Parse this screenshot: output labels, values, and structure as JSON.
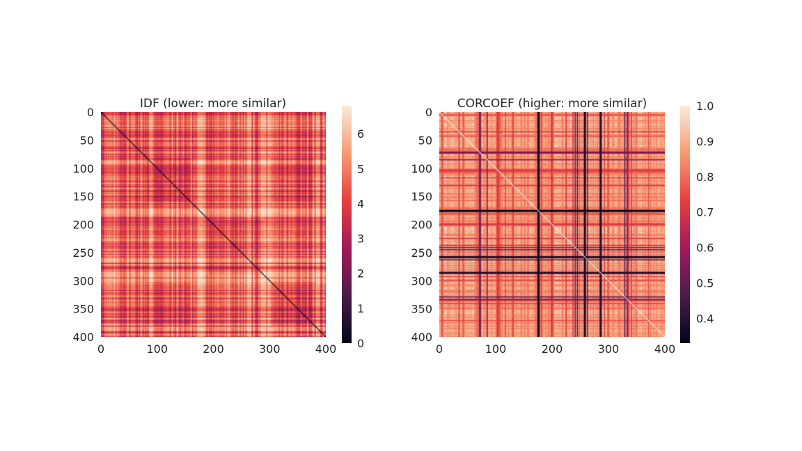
{
  "chart_data": [
    {
      "type": "heatmap",
      "title": "IDF (lower: more similar)",
      "matrix_size": 400,
      "xticks": [
        0,
        100,
        200,
        300,
        400
      ],
      "yticks": [
        0,
        50,
        100,
        150,
        200,
        250,
        300,
        350,
        400
      ],
      "diagonal_value": 0,
      "value_range": [
        0,
        6.8
      ],
      "colorbar": {
        "ticks": [
          0,
          1,
          2,
          3,
          4,
          5,
          6
        ],
        "vmin": 0,
        "vmax": 6.8
      },
      "colormap": "rocket",
      "cmap_stops": [
        "#03051a",
        "#4c1d4b",
        "#a11a5b",
        "#e83f3f",
        "#f69c73",
        "#faebdd"
      ],
      "grid": false
    },
    {
      "type": "heatmap",
      "title": "CORCOEF (higher: more similar)",
      "matrix_size": 400,
      "xticks": [
        0,
        100,
        200,
        300,
        400
      ],
      "yticks": [
        0,
        50,
        100,
        150,
        200,
        250,
        300,
        350,
        400
      ],
      "diagonal_value": 1.0,
      "value_range": [
        0.33,
        1.0
      ],
      "colorbar": {
        "ticks": [
          0.4,
          0.5,
          0.6,
          0.7,
          0.8,
          0.9,
          1.0
        ],
        "vmin": 0.33,
        "vmax": 1.0
      },
      "colormap": "rocket",
      "cmap_stops": [
        "#03051a",
        "#4c1d4b",
        "#a11a5b",
        "#e83f3f",
        "#f69c73",
        "#faebdd"
      ],
      "grid": false
    }
  ]
}
